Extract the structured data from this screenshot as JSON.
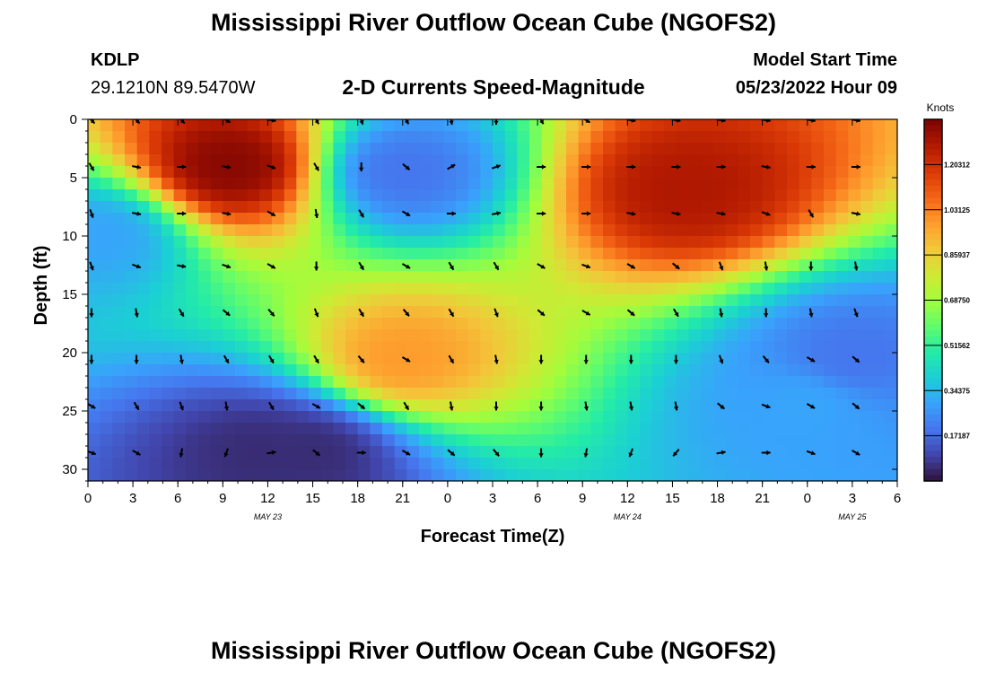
{
  "page": {
    "title": "Mississippi River Outflow Ocean Cube (NGOFS2)",
    "station_id": "KDLP",
    "station_coords": "29.1210N  89.5470W",
    "subtitle": "2-D Currents Speed-Magnitude",
    "model_start_label": "Model Start Time",
    "model_start_value": "05/23/2022 Hour 09",
    "footer_title": "Mississippi River Outflow Ocean Cube (NGOFS2)"
  },
  "chart_data": {
    "type": "heatmap",
    "title": "2-D Currents Speed-Magnitude",
    "xlabel": "Forecast Time(Z)",
    "ylabel": "Depth (ft)",
    "x_tick_labels": [
      "0",
      "3",
      "6",
      "9",
      "12",
      "15",
      "18",
      "21",
      "0",
      "3",
      "6",
      "9",
      "12",
      "15",
      "18",
      "21",
      "0",
      "3",
      "6"
    ],
    "x_range_hours": [
      0,
      54
    ],
    "date_labels": [
      {
        "label": "MAY 23",
        "hour": 12
      },
      {
        "label": "MAY 24",
        "hour": 36
      },
      {
        "label": "MAY 25",
        "hour": 51
      }
    ],
    "y_tick_labels": [
      "0",
      "5",
      "10",
      "15",
      "20",
      "25",
      "30"
    ],
    "y_range": [
      0,
      31
    ],
    "y_inverted": true,
    "colorbar": {
      "unit": "Knots",
      "range": [
        0.0,
        1.375
      ],
      "tick_labels": [
        "0.17187",
        "0.34375",
        "0.51562",
        "0.68750",
        "0.85937",
        "1.03125",
        "1.20312"
      ],
      "tick_values": [
        0.171875,
        0.34375,
        0.515625,
        0.6875,
        0.859375,
        1.03125,
        1.203125
      ]
    },
    "colormap": [
      "#30123b",
      "#4145ab",
      "#4675ed",
      "#39a2fc",
      "#1bcfd4",
      "#24eca6",
      "#61fc6c",
      "#a4fc3b",
      "#d1e834",
      "#f3c63a",
      "#fe9b2d",
      "#f36315",
      "#d93806",
      "#b11901",
      "#7a0402"
    ],
    "speed_hotspots": [
      {
        "hour": 9.5,
        "depth": 4,
        "speed": 1.35
      },
      {
        "hour": 40,
        "depth": 6,
        "speed": 1.28
      },
      {
        "hour": 21,
        "depth": 20.5,
        "speed": 0.98
      },
      {
        "hour": 11.5,
        "depth": 28.5,
        "speed": 0.05
      },
      {
        "hour": 15,
        "depth": 28.5,
        "speed": 0.05
      },
      {
        "hour": 21,
        "depth": 4.5,
        "speed": 0.2
      },
      {
        "hour": 1,
        "depth": 10,
        "speed": 0.3
      },
      {
        "hour": 51,
        "depth": 20.5,
        "speed": 0.2
      },
      {
        "hour": 48,
        "depth": 24.5,
        "speed": 0.3
      }
    ],
    "vector_depths": [
      0,
      4,
      8,
      12.5,
      16.5,
      20.5,
      24.5,
      28.5
    ],
    "vector_hours": [
      0,
      3,
      6,
      9,
      12,
      15,
      18,
      21,
      24,
      27,
      30,
      33,
      36,
      39,
      42,
      45,
      48,
      51
    ],
    "vector_angle_deg": [
      [
        45,
        45,
        45,
        30,
        10,
        60,
        70,
        60,
        80,
        90,
        60,
        30,
        10,
        10,
        10,
        10,
        10,
        10
      ],
      [
        60,
        10,
        0,
        10,
        20,
        60,
        90,
        40,
        -30,
        -20,
        0,
        0,
        0,
        0,
        0,
        10,
        0,
        0
      ],
      [
        70,
        10,
        0,
        10,
        30,
        80,
        60,
        30,
        0,
        -10,
        0,
        0,
        10,
        10,
        10,
        20,
        60,
        10
      ],
      [
        70,
        20,
        10,
        20,
        30,
        90,
        60,
        30,
        60,
        60,
        30,
        20,
        30,
        40,
        70,
        80,
        90,
        80
      ],
      [
        90,
        80,
        60,
        40,
        50,
        70,
        60,
        50,
        60,
        70,
        40,
        30,
        40,
        60,
        80,
        90,
        80,
        70
      ],
      [
        90,
        90,
        80,
        60,
        60,
        60,
        50,
        30,
        60,
        80,
        90,
        90,
        90,
        90,
        70,
        50,
        30,
        40
      ],
      [
        30,
        60,
        70,
        80,
        60,
        30,
        40,
        60,
        80,
        90,
        90,
        80,
        80,
        80,
        40,
        20,
        30,
        40
      ],
      [
        20,
        30,
        100,
        110,
        -10,
        40,
        0,
        30,
        40,
        50,
        90,
        100,
        110,
        130,
        -10,
        0,
        20,
        30
      ]
    ]
  }
}
